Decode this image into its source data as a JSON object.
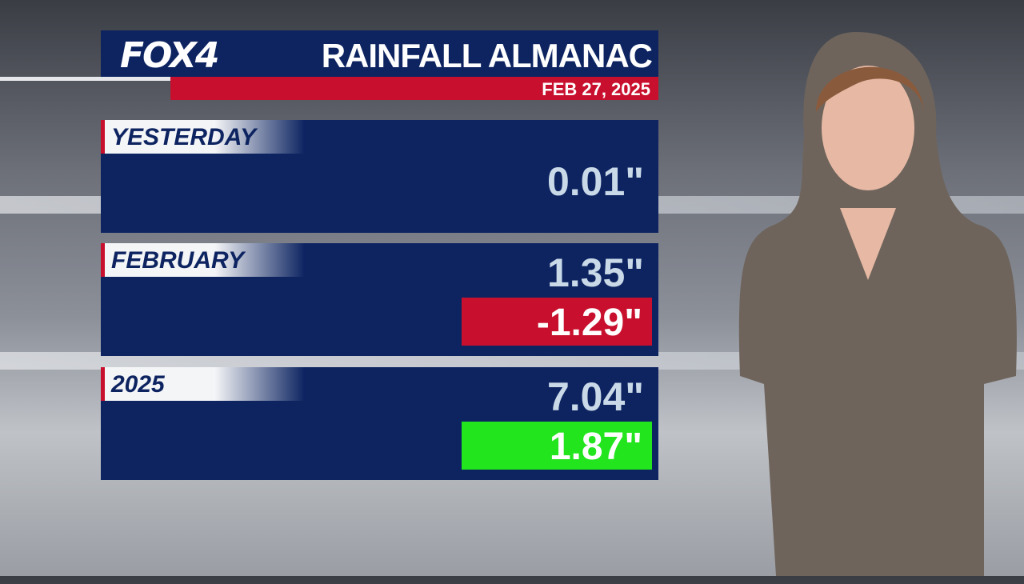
{
  "header": {
    "logo": "FOX4",
    "title": "RAINFALL ALMANAC",
    "date": "FEB 27, 2025"
  },
  "rows": [
    {
      "label": "YESTERDAY",
      "total": "0.01\""
    },
    {
      "label": "FEBRUARY",
      "total": "1.35\"",
      "departure": "-1.29\"",
      "departure_color": "#c8102e"
    },
    {
      "label": "2025",
      "total": "7.04\"",
      "departure": "1.87\"",
      "departure_color": "#22e51e"
    }
  ]
}
